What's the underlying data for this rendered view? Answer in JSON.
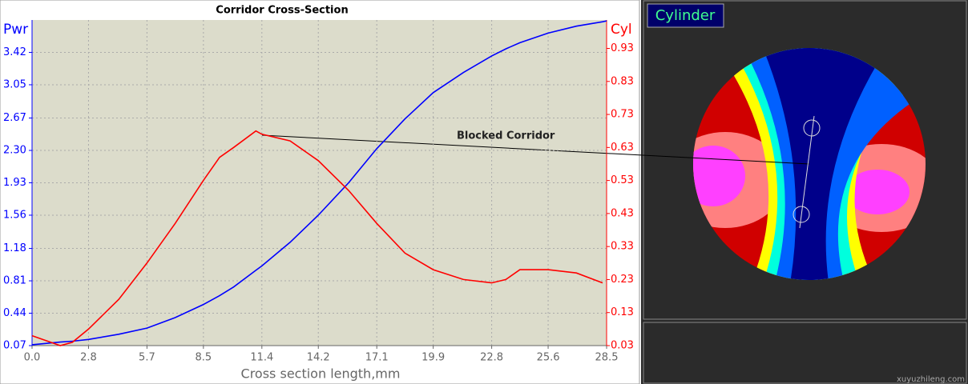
{
  "chart_data": {
    "type": "line",
    "title": "Corridor Cross-Section",
    "x_label": "Cross section length,mm",
    "x": [
      0,
      1.4,
      2.0,
      2.8,
      4.3,
      5.7,
      7.1,
      8.5,
      9.3,
      10.0,
      11.1,
      11.4,
      12.8,
      14.2,
      15.7,
      17.1,
      18.5,
      19.9,
      21.4,
      22.8,
      23.5,
      24.2,
      25.6,
      27.0,
      28.3,
      28.5
    ],
    "series": [
      {
        "name": "Pwr",
        "color": "#0000ff",
        "values": [
          0.08,
          0.11,
          0.12,
          0.14,
          0.2,
          0.27,
          0.39,
          0.54,
          0.64,
          0.74,
          0.93,
          0.98,
          1.25,
          1.56,
          1.93,
          2.32,
          2.66,
          2.96,
          3.19,
          3.38,
          3.46,
          3.53,
          3.64,
          3.72,
          3.77,
          3.78
        ]
      },
      {
        "name": "Cyl",
        "color": "#ff0000",
        "axis": "y2",
        "values": [
          0.06,
          0.03,
          0.04,
          0.08,
          0.17,
          0.28,
          0.4,
          0.53,
          0.6,
          0.63,
          0.68,
          0.67,
          0.65,
          0.59,
          0.5,
          0.4,
          0.31,
          0.26,
          0.23,
          0.22,
          0.23,
          0.26,
          0.26,
          0.25,
          0.22,
          null
        ]
      }
    ],
    "xlim": [
      0,
      28.5
    ],
    "ylim": [
      0.07,
      3.79
    ],
    "y2lim": [
      0.03,
      1.016
    ],
    "xticks": [
      {
        "value": 0,
        "label": "0.0"
      },
      2.8,
      5.7,
      8.5,
      11.4,
      14.2,
      17.1,
      19.9,
      22.8,
      25.6,
      28.5
    ],
    "yticks": [
      0.07,
      0.44,
      0.81,
      1.18,
      1.56,
      1.93,
      {
        "value": 2.3,
        "label": "2.30"
      },
      2.67,
      3.05,
      3.42
    ],
    "y2ticks": [
      0.03,
      0.13,
      0.23,
      0.33,
      0.43,
      0.53,
      0.63,
      0.73,
      0.83,
      0.93
    ],
    "grid": true,
    "annotation": "Blocked Corridor"
  },
  "panel": {
    "title": "Cylinder"
  },
  "watermark": "xuyuzhileng.com"
}
